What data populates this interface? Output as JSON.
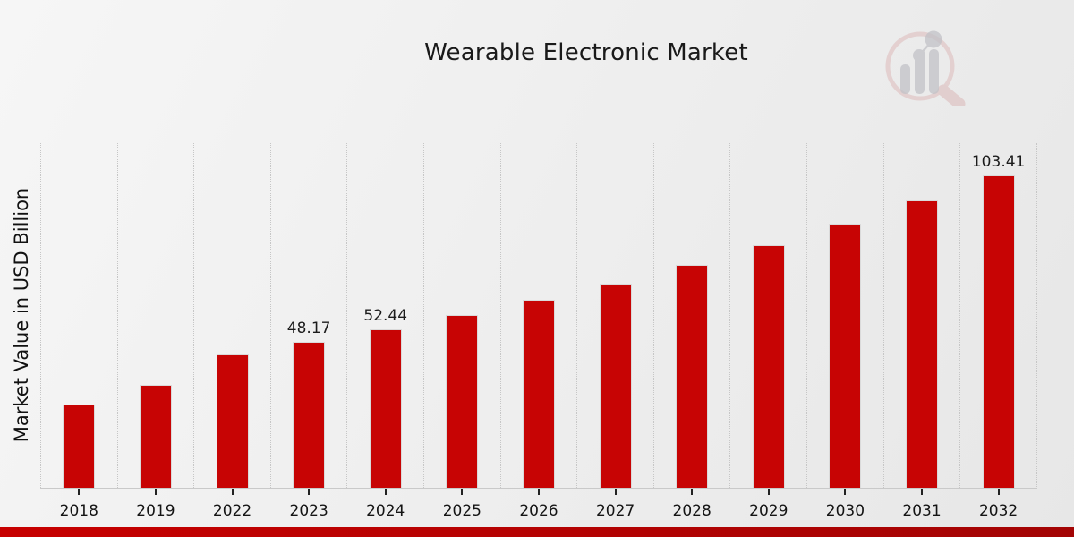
{
  "page": {
    "title": "Wearable Electronic Market"
  },
  "chart_data": {
    "type": "bar",
    "title": "Wearable Electronic Market",
    "xlabel": "",
    "ylabel": "Market Value in USD Billion",
    "categories": [
      "2018",
      "2019",
      "2022",
      "2023",
      "2024",
      "2025",
      "2026",
      "2027",
      "2028",
      "2029",
      "2030",
      "2031",
      "2032"
    ],
    "values": [
      27.6,
      34.1,
      44.25,
      48.17,
      52.44,
      57.09,
      62.15,
      67.66,
      73.65,
      80.18,
      87.28,
      95.01,
      103.41
    ],
    "data_labels": [
      "",
      "",
      "",
      "48.17",
      "52.44",
      "",
      "",
      "",
      "",
      "",
      "",
      "",
      "103.41"
    ],
    "ylim": [
      0,
      114
    ],
    "grid": "vertical-dotted",
    "legend": "none",
    "bar_color": "#c70404"
  },
  "watermark": {
    "icon": "market-research-future-logo"
  },
  "colors": {
    "bar": "#c70404",
    "bar_edge": "#dadada",
    "footer_left": "#c70000",
    "footer_right": "#a30404",
    "grid": "#c6c6c6",
    "text": "#1a1a1a"
  }
}
